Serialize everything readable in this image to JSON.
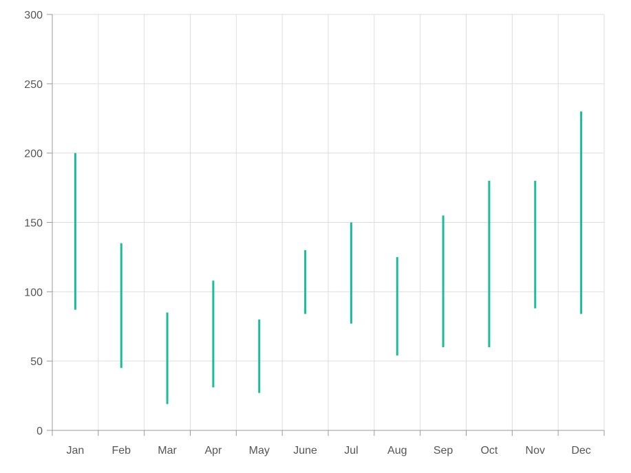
{
  "chart_data": {
    "type": "range-bar",
    "categories": [
      "Jan",
      "Feb",
      "Mar",
      "Apr",
      "May",
      "June",
      "Jul",
      "Aug",
      "Sep",
      "Oct",
      "Nov",
      "Dec"
    ],
    "series": [
      {
        "low": [
          87,
          45,
          19,
          31,
          27,
          84,
          77,
          54,
          60,
          60,
          88,
          84
        ],
        "high": [
          200,
          135,
          85,
          108,
          80,
          130,
          150,
          125,
          155,
          180,
          180,
          230
        ]
      }
    ],
    "ylim": [
      0,
      300
    ],
    "y_ticks": [
      0,
      50,
      100,
      150,
      200,
      250,
      300
    ],
    "grid": true,
    "colors": {
      "series": "#1abc9c",
      "grid": "#dddddd",
      "axis": "#999999",
      "text": "#555555"
    }
  }
}
